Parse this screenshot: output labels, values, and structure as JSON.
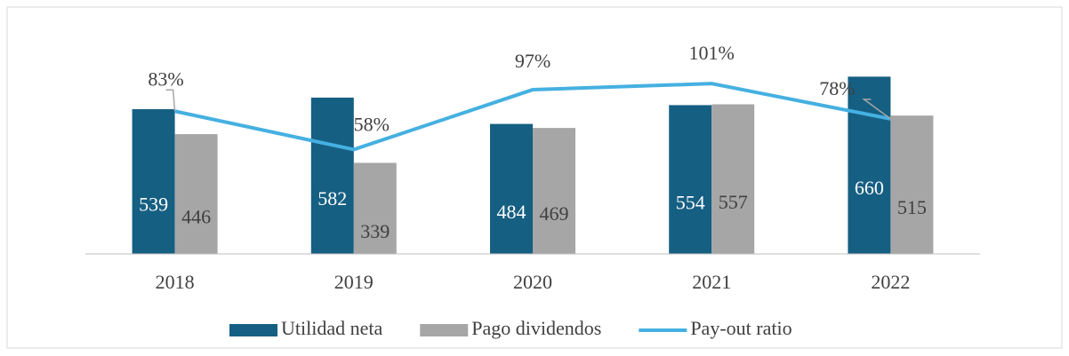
{
  "chart_data": {
    "type": "bar_line",
    "categories": [
      "2018",
      "2019",
      "2020",
      "2021",
      "2022"
    ],
    "series": [
      {
        "name": "Utilidad neta",
        "type": "bar",
        "color": "#155f82",
        "values": [
          539,
          582,
          484,
          554,
          660
        ]
      },
      {
        "name": "Pago dividendos",
        "type": "bar",
        "color": "#a6a6a6",
        "values": [
          446,
          339,
          469,
          557,
          515
        ]
      },
      {
        "name": "Pay-out ratio",
        "type": "line",
        "axis": "y2",
        "color": "#45b0e1",
        "values": [
          83,
          58,
          97,
          101,
          78
        ],
        "value_labels": [
          "83%",
          "58%",
          "97%",
          "101%",
          "78%"
        ]
      }
    ],
    "ylim": [
      0,
      800
    ],
    "y2lim": [
      -10,
      130
    ],
    "legend": "bottom"
  }
}
